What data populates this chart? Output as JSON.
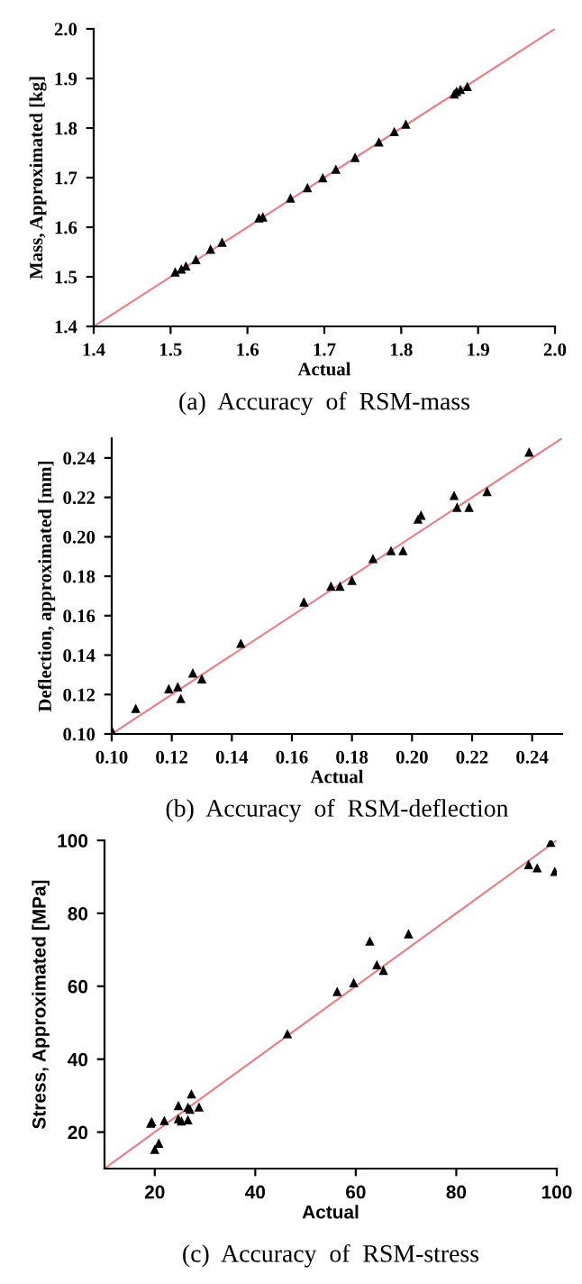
{
  "chart_data": [
    {
      "type": "scatter",
      "title": "(a)  Accuracy  of  RSM-mass",
      "xlabel": "Actual",
      "ylabel": "Mass, Approximated [kg]",
      "xlim": [
        1.4,
        2.0
      ],
      "ylim": [
        1.4,
        2.0
      ],
      "xticks": [
        1.4,
        1.5,
        1.6,
        1.7,
        1.8,
        1.9,
        {
          "value": 2.0,
          "label": "2.0"
        }
      ],
      "yticks": [
        1.4,
        1.5,
        1.6,
        1.7,
        1.8,
        1.9,
        {
          "value": 2.0,
          "label": "2.0"
        }
      ],
      "grid": false,
      "legend": false,
      "series": [
        {
          "marker": "triangle",
          "color": "#000000",
          "x": [
            1.506,
            1.514,
            1.52,
            1.533,
            1.552,
            1.567,
            1.615,
            1.62,
            1.656,
            1.678,
            1.698,
            1.715,
            1.74,
            1.771,
            1.791,
            1.806,
            1.869,
            1.872,
            1.877,
            1.886
          ],
          "values": [
            1.51,
            1.516,
            1.522,
            1.535,
            1.556,
            1.57,
            1.619,
            1.621,
            1.659,
            1.68,
            1.7,
            1.717,
            1.741,
            1.772,
            1.793,
            1.808,
            1.869,
            1.874,
            1.878,
            1.884
          ]
        },
        {
          "type": "line",
          "color": "#e8808a",
          "x": [
            1.4,
            2.0
          ],
          "values": [
            1.4,
            2.0
          ]
        }
      ]
    },
    {
      "type": "scatter",
      "title": "(b)  Accuracy  of  RSM-deflection",
      "xlabel": "Actual",
      "ylabel": "Deflection, approximated [mm]",
      "xlim": [
        0.1,
        0.25
      ],
      "ylim": [
        0.1,
        0.25
      ],
      "xticks": [
        {
          "value": 0.1,
          "label": "0.10"
        },
        {
          "value": 0.12,
          "label": "0.12"
        },
        {
          "value": 0.14,
          "label": "0.14"
        },
        {
          "value": 0.16,
          "label": "0.16"
        },
        {
          "value": 0.18,
          "label": "0.18"
        },
        {
          "value": 0.2,
          "label": "0.20"
        },
        {
          "value": 0.22,
          "label": "0.22"
        },
        {
          "value": 0.24,
          "label": "0.24"
        }
      ],
      "yticks": [
        {
          "value": 0.1,
          "label": "0.10"
        },
        {
          "value": 0.12,
          "label": "0.12"
        },
        {
          "value": 0.14,
          "label": "0.14"
        },
        {
          "value": 0.16,
          "label": "0.16"
        },
        {
          "value": 0.18,
          "label": "0.18"
        },
        {
          "value": 0.2,
          "label": "0.20"
        },
        {
          "value": 0.22,
          "label": "0.22"
        },
        {
          "value": 0.24,
          "label": "0.24"
        }
      ],
      "grid": false,
      "legend": false,
      "series": [
        {
          "marker": "triangle",
          "color": "#000000",
          "x": [
            0.1,
            0.108,
            0.119,
            0.122,
            0.123,
            0.127,
            0.13,
            0.143,
            0.164,
            0.173,
            0.176,
            0.18,
            0.187,
            0.193,
            0.197,
            0.202,
            0.203,
            0.214,
            0.215,
            0.219,
            0.225,
            0.239
          ],
          "values": [
            0.102,
            0.113,
            0.123,
            0.124,
            0.118,
            0.131,
            0.128,
            0.146,
            0.167,
            0.175,
            0.175,
            0.178,
            0.189,
            0.193,
            0.193,
            0.209,
            0.211,
            0.221,
            0.215,
            0.215,
            0.223,
            0.243
          ]
        },
        {
          "type": "line",
          "color": "#e8808a",
          "x": [
            0.1,
            0.25
          ],
          "values": [
            0.1,
            0.25
          ]
        }
      ]
    },
    {
      "type": "scatter",
      "title": "(c)  Accuracy  of  RSM-stress",
      "xlabel": "Actual",
      "ylabel": "Stress, Approximated [MPa]",
      "xlim": [
        10,
        100
      ],
      "ylim": [
        10,
        100
      ],
      "xticks": [
        20,
        40,
        60,
        80,
        100
      ],
      "yticks": [
        20,
        40,
        60,
        80,
        100
      ],
      "grid": false,
      "legend": false,
      "series": [
        {
          "marker": "triangle",
          "color": "#000000",
          "x": [
            19.2,
            19.4,
            20.0,
            20.8,
            21.9,
            24.7,
            24.7,
            25.3,
            26.6,
            26.6,
            27.0,
            27.3,
            28.8,
            46.4,
            56.3,
            59.6,
            62.8,
            64.2,
            65.5,
            70.5,
            94.4,
            96.1,
            99.6,
            98.8
          ],
          "values": [
            22.5,
            22.9,
            15.3,
            17.0,
            23.2,
            27.3,
            23.7,
            23.1,
            23.4,
            26.8,
            26.3,
            30.5,
            26.9,
            47.0,
            58.6,
            61.0,
            72.4,
            65.9,
            64.4,
            74.4,
            93.4,
            92.5,
            91.5,
            99.5
          ]
        },
        {
          "type": "line",
          "color": "#e8808a",
          "x": [
            10,
            100
          ],
          "values": [
            10,
            100
          ]
        }
      ]
    }
  ]
}
